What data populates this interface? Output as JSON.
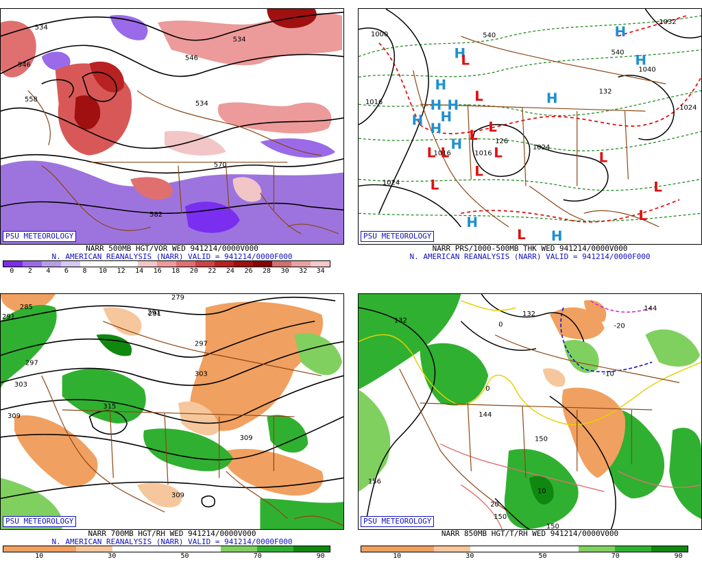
{
  "branding": "PSU METEOROLOGY",
  "panels": [
    {
      "id": "tl",
      "title_line1": "NARR 500MB HGT/VOR WED 941214/0000V000",
      "title_line2": "N. AMERICAN REANALYSIS (NARR) VALID = 941214/0000F000",
      "map_labels": [
        "534",
        "546",
        "558",
        "570",
        "582",
        "534",
        "546",
        "534"
      ],
      "scale": {
        "colors": [
          "#7b2ee6",
          "#9a6ae8",
          "#b89ce8",
          "#d6c8f0",
          "#ffffff",
          "#ffffff",
          "#ffffff",
          "#f2c6c6",
          "#ec9a9a",
          "#e07070",
          "#cc4444",
          "#b82222",
          "#a01010",
          "#880000",
          "#d07070",
          "#e8a0a0",
          "#f6c8c8"
        ],
        "ticks": [
          "0",
          "2",
          "4",
          "6",
          "8",
          "10",
          "12",
          "14",
          "16",
          "18",
          "20",
          "22",
          "24",
          "26",
          "28",
          "30",
          "32",
          "34"
        ]
      }
    },
    {
      "id": "tr",
      "title_line1": "NARR PRS/1000-500MB THK WED 941214/0000V000",
      "title_line2": "N. AMERICAN REANALYSIS (NARR) VALID = 941214/0000F000",
      "map_labels": [
        "1000",
        "540",
        "1016",
        "1024",
        "1016",
        "1024",
        "1016",
        "1016",
        "132",
        "1024",
        "1032",
        "1040",
        "126",
        "540"
      ],
      "highs": [
        "H",
        "H",
        "H",
        "H",
        "H",
        "H",
        "H",
        "H",
        "H",
        "H",
        "H",
        "H",
        "H"
      ],
      "lows": [
        "L",
        "L",
        "L",
        "L",
        "L",
        "L",
        "L",
        "L",
        "L",
        "L",
        "L",
        "L",
        "L"
      ],
      "scale": {
        "colors": [],
        "ticks": []
      }
    },
    {
      "id": "bl",
      "title_line1": "NARR 700MB HGT/RH WED 941214/0000V000",
      "title_line2": "N. AMERICAN REANALYSIS (NARR) VALID = 941214/0000F000",
      "map_labels": [
        "291",
        "285",
        "279",
        "291",
        "297",
        "303",
        "309",
        "297",
        "303",
        "309",
        "309",
        "315",
        "291"
      ],
      "scale": {
        "colors": [
          "#f0a060",
          "#f0a060",
          "#f6c79c",
          "#ffffff",
          "#ffffff",
          "#ffffff",
          "#80d060",
          "#30b030",
          "#108810"
        ],
        "ticks": [
          "10",
          "30",
          "50",
          "70",
          "90"
        ]
      }
    },
    {
      "id": "br",
      "title_line1": "NARR 850MB HGT/T/RH WED 941214/0000V000",
      "title_line2": "",
      "map_labels": [
        "132",
        "132",
        "144",
        "-20",
        "-10",
        "0",
        "0",
        "150",
        "156",
        "150",
        "150",
        "10",
        "20",
        "144"
      ],
      "scale": {
        "colors": [
          "#f0a060",
          "#f0a060",
          "#f6c79c",
          "#ffffff",
          "#ffffff",
          "#ffffff",
          "#80d060",
          "#30b030",
          "#108810"
        ],
        "ticks": [
          "10",
          "30",
          "50",
          "70",
          "90"
        ]
      }
    }
  ]
}
